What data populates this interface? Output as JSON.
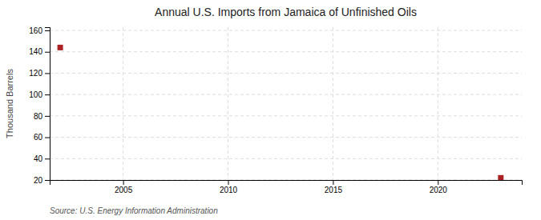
{
  "chart_data": {
    "type": "scatter",
    "title": "Annual U.S. Imports from Jamaica of Unfinished Oils",
    "ylabel": "Thousand Barrels",
    "annotation": "Source: U.S. Energy Information Administration",
    "x": [
      2002,
      2023
    ],
    "values": [
      144,
      22
    ],
    "color": "#aa2222",
    "marker": "square",
    "xlim": [
      2001.5,
      2024
    ],
    "ylim": [
      20,
      163
    ],
    "xticks": [
      2005,
      2010,
      2015,
      2020
    ],
    "yticks": [
      20,
      40,
      60,
      80,
      100,
      120,
      140,
      160
    ],
    "grid": true
  }
}
